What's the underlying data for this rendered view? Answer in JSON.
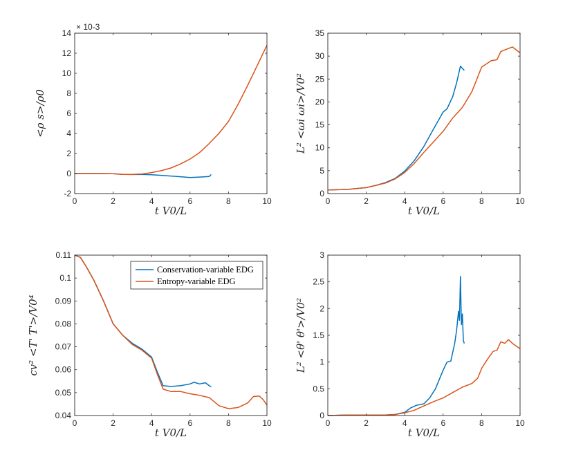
{
  "colors": {
    "series1": "#0072bd",
    "series2": "#d95319",
    "axis": "#262626"
  },
  "chart_data": [
    {
      "type": "line",
      "id": "p1",
      "xlabel": "t V0/L",
      "ylabel": "<ρ s>/ρ0",
      "exponent_label": "× 10-3",
      "xlim": [
        0,
        10
      ],
      "ylim": [
        -2,
        14
      ],
      "xticks": [
        "0",
        "2",
        "4",
        "6",
        "8",
        "10"
      ],
      "yticks": [
        "-2",
        "0",
        "2",
        "4",
        "6",
        "8",
        "10",
        "12",
        "14"
      ],
      "series": [
        {
          "name": "Conservation-variable EDG",
          "color_key": "series1",
          "x": [
            0,
            1,
            2,
            2.5,
            3,
            3.5,
            4,
            4.5,
            5,
            5.5,
            6,
            6.5,
            7,
            7.1
          ],
          "y": [
            0,
            0,
            -0.02,
            -0.08,
            -0.1,
            -0.08,
            -0.12,
            -0.18,
            -0.25,
            -0.32,
            -0.4,
            -0.35,
            -0.3,
            -0.1
          ]
        },
        {
          "name": "Entropy-variable EDG",
          "color_key": "series2",
          "x": [
            0,
            1,
            2,
            2.5,
            3,
            3.5,
            4,
            4.5,
            5,
            5.5,
            6,
            6.5,
            7,
            7.5,
            8,
            8.5,
            9,
            9.5,
            10
          ],
          "y": [
            0,
            0,
            -0.02,
            -0.08,
            -0.08,
            -0.04,
            0.1,
            0.28,
            0.55,
            0.95,
            1.45,
            2.1,
            3.0,
            4.0,
            5.2,
            6.9,
            8.8,
            10.8,
            12.8
          ]
        }
      ]
    },
    {
      "type": "line",
      "id": "p2",
      "xlabel": "t V0/L",
      "ylabel": "L² <ωi ωi>/V0²",
      "xlim": [
        0,
        10
      ],
      "ylim": [
        0,
        35
      ],
      "xticks": [
        "0",
        "2",
        "4",
        "6",
        "8",
        "10"
      ],
      "yticks": [
        "0",
        "5",
        "10",
        "15",
        "20",
        "25",
        "30",
        "35"
      ],
      "series": [
        {
          "name": "Conservation-variable EDG",
          "color_key": "series1",
          "x": [
            0,
            1,
            2,
            2.5,
            3,
            3.5,
            4,
            4.5,
            5,
            5.5,
            6,
            6.2,
            6.5,
            6.7,
            6.9,
            7.0,
            7.1
          ],
          "y": [
            0.8,
            0.9,
            1.3,
            1.8,
            2.4,
            3.3,
            4.9,
            7.2,
            10.3,
            14.1,
            17.8,
            18.5,
            21.2,
            24.2,
            27.8,
            27.3,
            26.9
          ]
        },
        {
          "name": "Entropy-variable EDG",
          "color_key": "series2",
          "x": [
            0,
            1,
            2,
            2.5,
            3,
            3.5,
            4,
            4.5,
            5,
            5.5,
            6,
            6.5,
            7,
            7.5,
            8,
            8.5,
            8.8,
            9,
            9.3,
            9.6,
            10
          ],
          "y": [
            0.8,
            0.9,
            1.3,
            1.8,
            2.3,
            3.2,
            4.6,
            6.6,
            9.0,
            11.3,
            13.6,
            16.5,
            18.8,
            22.3,
            27.6,
            29.0,
            29.2,
            31.0,
            31.5,
            32.0,
            30.7
          ]
        }
      ]
    },
    {
      "type": "line",
      "id": "p3",
      "xlabel": "t V0/L",
      "ylabel": "cv² <T' T'>/V0⁴",
      "xlim": [
        0,
        10
      ],
      "ylim": [
        0.04,
        0.11
      ],
      "xticks": [
        "0",
        "2",
        "4",
        "6",
        "8",
        "10"
      ],
      "yticks": [
        "0.04",
        "0.05",
        "0.06",
        "0.07",
        "0.08",
        "0.09",
        "0.1",
        "0.11"
      ],
      "legend": {
        "position": "top-right",
        "entries": [
          "Conservation-variable EDG",
          "Entropy-variable EDG"
        ]
      },
      "series": [
        {
          "name": "Conservation-variable EDG",
          "color_key": "series1",
          "x": [
            0,
            0.3,
            0.6,
            1,
            1.5,
            2,
            2.5,
            3,
            3.5,
            4,
            4.3,
            4.6,
            5,
            5.5,
            6,
            6.2,
            6.5,
            6.8,
            7,
            7.1
          ],
          "y": [
            0.11,
            0.109,
            0.105,
            0.099,
            0.09,
            0.08,
            0.075,
            0.0715,
            0.069,
            0.0655,
            0.059,
            0.053,
            0.0527,
            0.053,
            0.0538,
            0.0545,
            0.0538,
            0.0543,
            0.053,
            0.0525
          ]
        },
        {
          "name": "Entropy-variable EDG",
          "color_key": "series2",
          "x": [
            0,
            0.3,
            0.6,
            1,
            1.5,
            2,
            2.5,
            3,
            3.5,
            4,
            4.3,
            4.6,
            5,
            5.5,
            6,
            6.5,
            7,
            7.5,
            8,
            8.5,
            9,
            9.3,
            9.6,
            9.8,
            10
          ],
          "y": [
            0.11,
            0.109,
            0.105,
            0.099,
            0.09,
            0.08,
            0.075,
            0.071,
            0.0685,
            0.065,
            0.058,
            0.0515,
            0.0505,
            0.0505,
            0.0495,
            0.0488,
            0.0478,
            0.0443,
            0.043,
            0.0435,
            0.0455,
            0.0483,
            0.0485,
            0.047,
            0.0445
          ]
        }
      ]
    },
    {
      "type": "line",
      "id": "p4",
      "xlabel": "t V0/L",
      "ylabel": "L² <θ' θ'>/V0²",
      "xlim": [
        0,
        10
      ],
      "ylim": [
        0,
        3
      ],
      "xticks": [
        "0",
        "2",
        "4",
        "6",
        "8",
        "10"
      ],
      "yticks": [
        "0",
        "0.5",
        "1",
        "1.5",
        "2",
        "2.5",
        "3"
      ],
      "series": [
        {
          "name": "Conservation-variable EDG",
          "color_key": "series1",
          "x": [
            0,
            1,
            2,
            3,
            3.5,
            4,
            4.3,
            4.6,
            5,
            5.3,
            5.6,
            6,
            6.2,
            6.4,
            6.6,
            6.7,
            6.8,
            6.85,
            6.9,
            6.95,
            7.0,
            7.05,
            7.1
          ],
          "y": [
            0,
            0.01,
            0.01,
            0.01,
            0.02,
            0.06,
            0.14,
            0.19,
            0.22,
            0.33,
            0.5,
            0.85,
            1.0,
            1.02,
            1.35,
            1.6,
            1.95,
            1.78,
            2.6,
            1.7,
            1.9,
            1.4,
            1.35
          ]
        },
        {
          "name": "Entropy-variable EDG",
          "color_key": "series2",
          "x": [
            0,
            1,
            2,
            3,
            3.5,
            4,
            4.5,
            5,
            5.5,
            6,
            6.5,
            7,
            7.5,
            7.8,
            8,
            8.3,
            8.6,
            8.8,
            9,
            9.2,
            9.4,
            9.6,
            9.8,
            10
          ],
          "y": [
            0,
            0.01,
            0.01,
            0.01,
            0.02,
            0.05,
            0.1,
            0.18,
            0.26,
            0.33,
            0.43,
            0.53,
            0.6,
            0.7,
            0.88,
            1.05,
            1.2,
            1.22,
            1.38,
            1.35,
            1.42,
            1.35,
            1.3,
            1.25
          ]
        }
      ]
    }
  ]
}
